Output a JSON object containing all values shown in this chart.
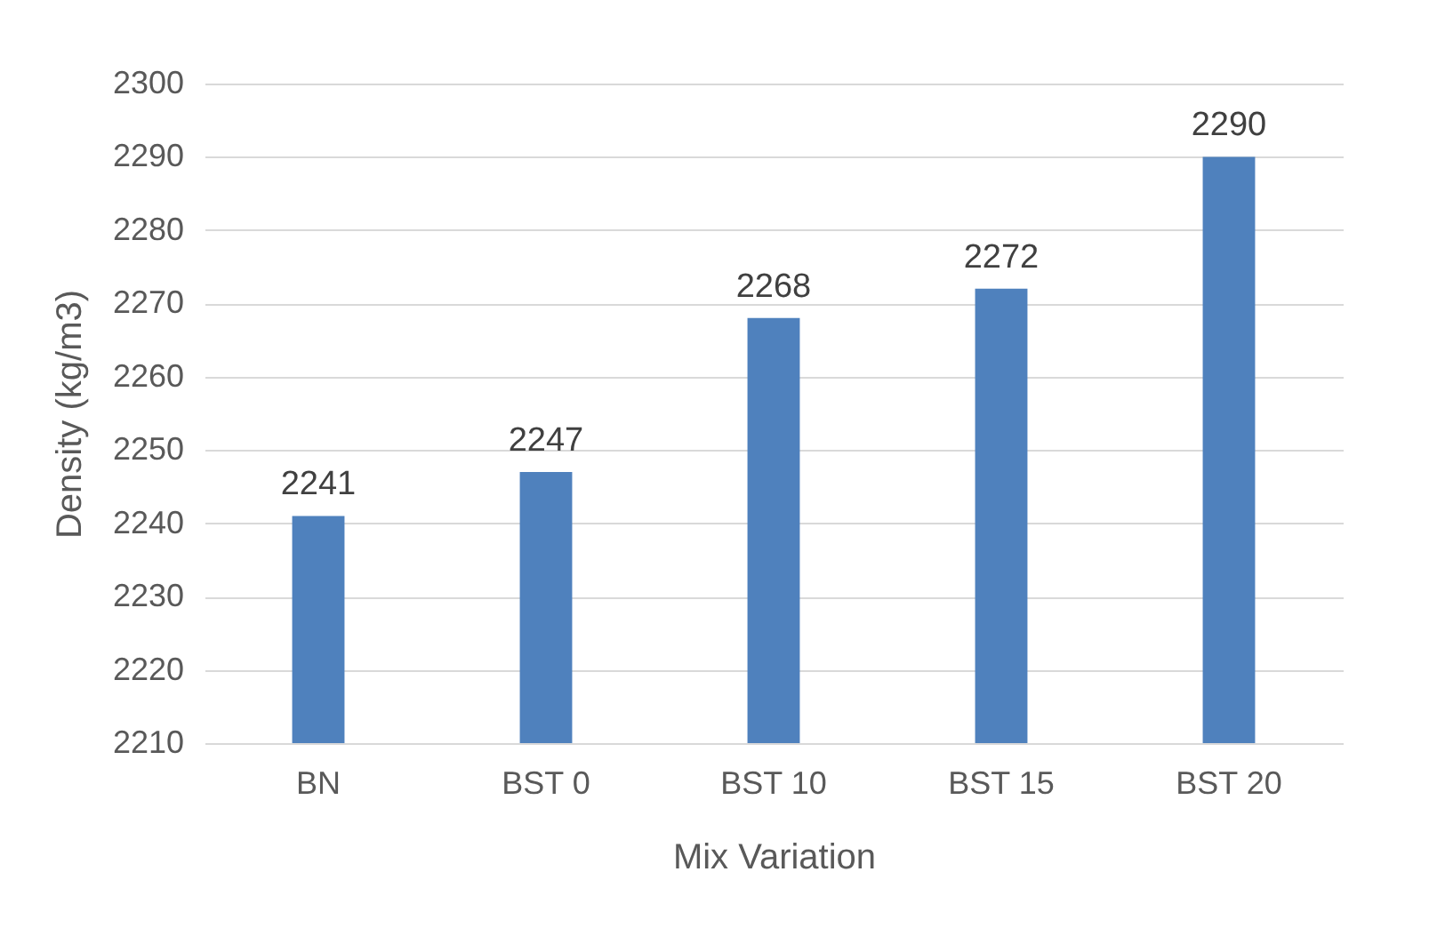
{
  "chart_data": {
    "type": "bar",
    "xlabel": "Mix Variation",
    "ylabel": "Density (kg/m3)",
    "categories": [
      "BN",
      "BST 0",
      "BST 10",
      "BST 15",
      "BST 20"
    ],
    "values": [
      2241,
      2247,
      2268,
      2272,
      2290
    ],
    "color": "#4f81bd",
    "ylim": [
      2210,
      2300
    ],
    "yticks": [
      2210,
      2220,
      2230,
      2240,
      2250,
      2260,
      2270,
      2280,
      2290,
      2300
    ],
    "grid": "y",
    "data_labels": true
  }
}
